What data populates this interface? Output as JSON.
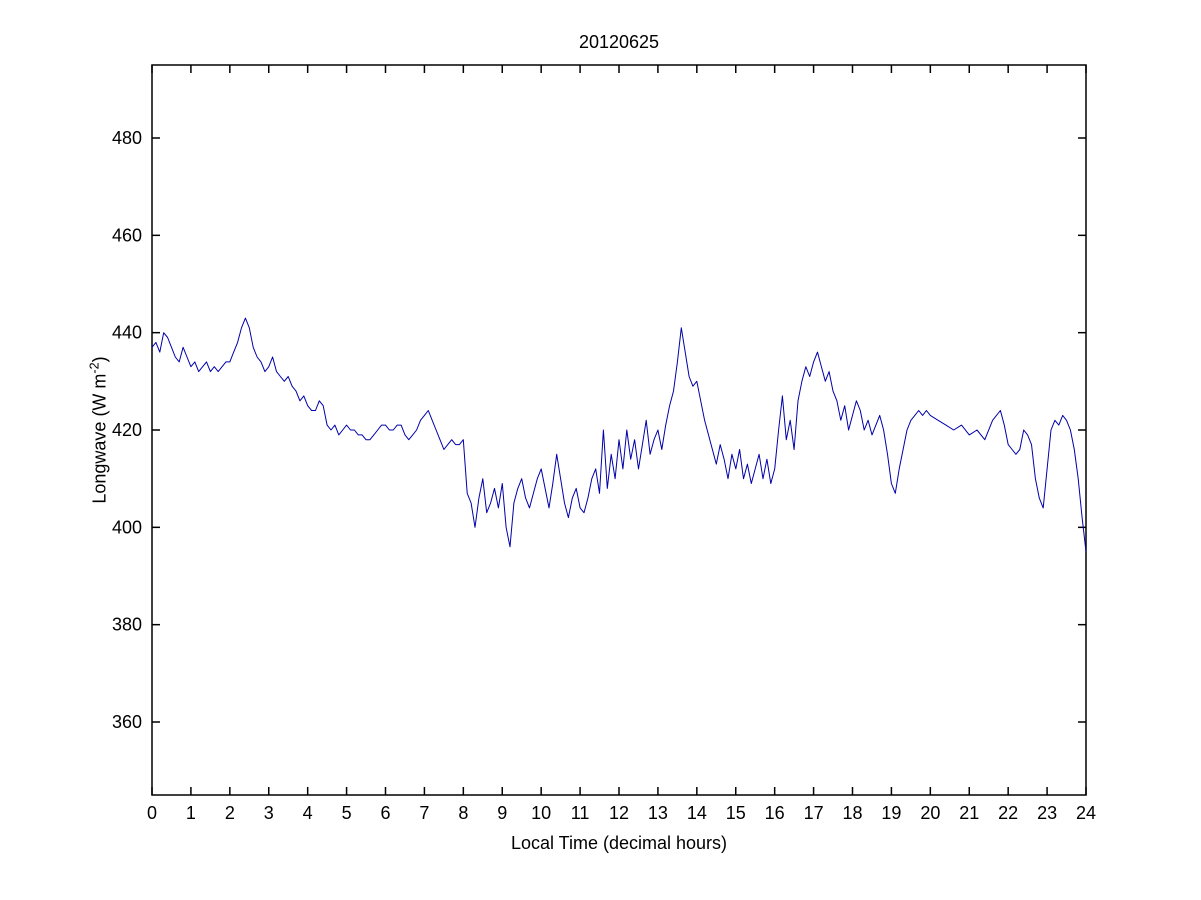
{
  "chart_data": {
    "type": "line",
    "title": "20120625",
    "xlabel": "Local Time (decimal hours)",
    "ylabel": "Longwave (W m^-2)",
    "ylabel_main": "Longwave (W m",
    "ylabel_sup": "-2",
    "ylabel_end": ")",
    "xlim": [
      0,
      24
    ],
    "ylim": [
      345,
      495
    ],
    "xticks": [
      0,
      1,
      2,
      3,
      4,
      5,
      6,
      7,
      8,
      9,
      10,
      11,
      12,
      13,
      14,
      15,
      16,
      17,
      18,
      19,
      20,
      21,
      22,
      23,
      24
    ],
    "yticks": [
      360,
      380,
      400,
      420,
      440,
      460,
      480
    ],
    "grid": false,
    "legend_position": "none",
    "line_color": "#0000AA",
    "axis_color": "#000000",
    "series": [
      {
        "name": "longwave",
        "points": [
          [
            0.0,
            437
          ],
          [
            0.1,
            438
          ],
          [
            0.2,
            436
          ],
          [
            0.3,
            440
          ],
          [
            0.4,
            439
          ],
          [
            0.5,
            437
          ],
          [
            0.6,
            435
          ],
          [
            0.7,
            434
          ],
          [
            0.8,
            437
          ],
          [
            0.9,
            435
          ],
          [
            1.0,
            433
          ],
          [
            1.1,
            434
          ],
          [
            1.2,
            432
          ],
          [
            1.3,
            433
          ],
          [
            1.4,
            434
          ],
          [
            1.5,
            432
          ],
          [
            1.6,
            433
          ],
          [
            1.7,
            432
          ],
          [
            1.8,
            433
          ],
          [
            1.9,
            434
          ],
          [
            2.0,
            434
          ],
          [
            2.1,
            436
          ],
          [
            2.2,
            438
          ],
          [
            2.3,
            441
          ],
          [
            2.4,
            443
          ],
          [
            2.5,
            441
          ],
          [
            2.6,
            437
          ],
          [
            2.7,
            435
          ],
          [
            2.8,
            434
          ],
          [
            2.9,
            432
          ],
          [
            3.0,
            433
          ],
          [
            3.1,
            435
          ],
          [
            3.2,
            432
          ],
          [
            3.3,
            431
          ],
          [
            3.4,
            430
          ],
          [
            3.5,
            431
          ],
          [
            3.6,
            429
          ],
          [
            3.7,
            428
          ],
          [
            3.8,
            426
          ],
          [
            3.9,
            427
          ],
          [
            4.0,
            425
          ],
          [
            4.1,
            424
          ],
          [
            4.2,
            424
          ],
          [
            4.3,
            426
          ],
          [
            4.4,
            425
          ],
          [
            4.5,
            421
          ],
          [
            4.6,
            420
          ],
          [
            4.7,
            421
          ],
          [
            4.8,
            419
          ],
          [
            4.9,
            420
          ],
          [
            5.0,
            421
          ],
          [
            5.1,
            420
          ],
          [
            5.2,
            420
          ],
          [
            5.3,
            419
          ],
          [
            5.4,
            419
          ],
          [
            5.5,
            418
          ],
          [
            5.6,
            418
          ],
          [
            5.7,
            419
          ],
          [
            5.8,
            420
          ],
          [
            5.9,
            421
          ],
          [
            6.0,
            421
          ],
          [
            6.1,
            420
          ],
          [
            6.2,
            420
          ],
          [
            6.3,
            421
          ],
          [
            6.4,
            421
          ],
          [
            6.5,
            419
          ],
          [
            6.6,
            418
          ],
          [
            6.7,
            419
          ],
          [
            6.8,
            420
          ],
          [
            6.9,
            422
          ],
          [
            7.0,
            423
          ],
          [
            7.1,
            424
          ],
          [
            7.2,
            422
          ],
          [
            7.3,
            420
          ],
          [
            7.4,
            418
          ],
          [
            7.5,
            416
          ],
          [
            7.6,
            417
          ],
          [
            7.7,
            418
          ],
          [
            7.8,
            417
          ],
          [
            7.9,
            417
          ],
          [
            8.0,
            418
          ],
          [
            8.1,
            407
          ],
          [
            8.2,
            405
          ],
          [
            8.3,
            400
          ],
          [
            8.4,
            406
          ],
          [
            8.5,
            410
          ],
          [
            8.6,
            403
          ],
          [
            8.7,
            405
          ],
          [
            8.8,
            408
          ],
          [
            8.9,
            404
          ],
          [
            9.0,
            409
          ],
          [
            9.1,
            400
          ],
          [
            9.2,
            396
          ],
          [
            9.3,
            405
          ],
          [
            9.4,
            408
          ],
          [
            9.5,
            410
          ],
          [
            9.6,
            406
          ],
          [
            9.7,
            404
          ],
          [
            9.8,
            407
          ],
          [
            9.9,
            410
          ],
          [
            10.0,
            412
          ],
          [
            10.1,
            408
          ],
          [
            10.2,
            404
          ],
          [
            10.3,
            409
          ],
          [
            10.4,
            415
          ],
          [
            10.5,
            410
          ],
          [
            10.6,
            405
          ],
          [
            10.7,
            402
          ],
          [
            10.8,
            406
          ],
          [
            10.9,
            408
          ],
          [
            11.0,
            404
          ],
          [
            11.1,
            403
          ],
          [
            11.2,
            406
          ],
          [
            11.3,
            410
          ],
          [
            11.4,
            412
          ],
          [
            11.5,
            407
          ],
          [
            11.6,
            420
          ],
          [
            11.7,
            408
          ],
          [
            11.8,
            415
          ],
          [
            11.9,
            410
          ],
          [
            12.0,
            418
          ],
          [
            12.1,
            412
          ],
          [
            12.2,
            420
          ],
          [
            12.3,
            414
          ],
          [
            12.4,
            418
          ],
          [
            12.5,
            412
          ],
          [
            12.6,
            417
          ],
          [
            12.7,
            422
          ],
          [
            12.8,
            415
          ],
          [
            12.9,
            418
          ],
          [
            13.0,
            420
          ],
          [
            13.1,
            416
          ],
          [
            13.2,
            421
          ],
          [
            13.3,
            425
          ],
          [
            13.4,
            428
          ],
          [
            13.5,
            434
          ],
          [
            13.6,
            441
          ],
          [
            13.7,
            436
          ],
          [
            13.8,
            431
          ],
          [
            13.9,
            429
          ],
          [
            14.0,
            430
          ],
          [
            14.1,
            426
          ],
          [
            14.2,
            422
          ],
          [
            14.3,
            419
          ],
          [
            14.4,
            416
          ],
          [
            14.5,
            413
          ],
          [
            14.6,
            417
          ],
          [
            14.7,
            414
          ],
          [
            14.8,
            410
          ],
          [
            14.9,
            415
          ],
          [
            15.0,
            412
          ],
          [
            15.1,
            416
          ],
          [
            15.2,
            410
          ],
          [
            15.3,
            413
          ],
          [
            15.4,
            409
          ],
          [
            15.5,
            412
          ],
          [
            15.6,
            415
          ],
          [
            15.7,
            410
          ],
          [
            15.8,
            414
          ],
          [
            15.9,
            409
          ],
          [
            16.0,
            412
          ],
          [
            16.1,
            420
          ],
          [
            16.2,
            427
          ],
          [
            16.3,
            418
          ],
          [
            16.4,
            422
          ],
          [
            16.5,
            416
          ],
          [
            16.6,
            426
          ],
          [
            16.7,
            430
          ],
          [
            16.8,
            433
          ],
          [
            16.9,
            431
          ],
          [
            17.0,
            434
          ],
          [
            17.1,
            436
          ],
          [
            17.2,
            433
          ],
          [
            17.3,
            430
          ],
          [
            17.4,
            432
          ],
          [
            17.5,
            428
          ],
          [
            17.6,
            426
          ],
          [
            17.7,
            422
          ],
          [
            17.8,
            425
          ],
          [
            17.9,
            420
          ],
          [
            18.0,
            423
          ],
          [
            18.1,
            426
          ],
          [
            18.2,
            424
          ],
          [
            18.3,
            420
          ],
          [
            18.4,
            422
          ],
          [
            18.5,
            419
          ],
          [
            18.6,
            421
          ],
          [
            18.7,
            423
          ],
          [
            18.8,
            420
          ],
          [
            18.9,
            415
          ],
          [
            19.0,
            409
          ],
          [
            19.1,
            407
          ],
          [
            19.2,
            412
          ],
          [
            19.3,
            416
          ],
          [
            19.4,
            420
          ],
          [
            19.5,
            422
          ],
          [
            19.6,
            423
          ],
          [
            19.7,
            424
          ],
          [
            19.8,
            423
          ],
          [
            19.9,
            424
          ],
          [
            20.0,
            423
          ],
          [
            20.2,
            422
          ],
          [
            20.4,
            421
          ],
          [
            20.6,
            420
          ],
          [
            20.8,
            421
          ],
          [
            21.0,
            419
          ],
          [
            21.2,
            420
          ],
          [
            21.4,
            418
          ],
          [
            21.6,
            422
          ],
          [
            21.8,
            424
          ],
          [
            21.9,
            421
          ],
          [
            22.0,
            417
          ],
          [
            22.1,
            416
          ],
          [
            22.2,
            415
          ],
          [
            22.3,
            416
          ],
          [
            22.4,
            420
          ],
          [
            22.5,
            419
          ],
          [
            22.6,
            417
          ],
          [
            22.7,
            410
          ],
          [
            22.8,
            406
          ],
          [
            22.9,
            404
          ],
          [
            23.0,
            412
          ],
          [
            23.1,
            420
          ],
          [
            23.2,
            422
          ],
          [
            23.3,
            421
          ],
          [
            23.4,
            423
          ],
          [
            23.5,
            422
          ],
          [
            23.6,
            420
          ],
          [
            23.7,
            416
          ],
          [
            23.8,
            410
          ],
          [
            23.9,
            402
          ],
          [
            24.0,
            395
          ]
        ]
      }
    ]
  }
}
